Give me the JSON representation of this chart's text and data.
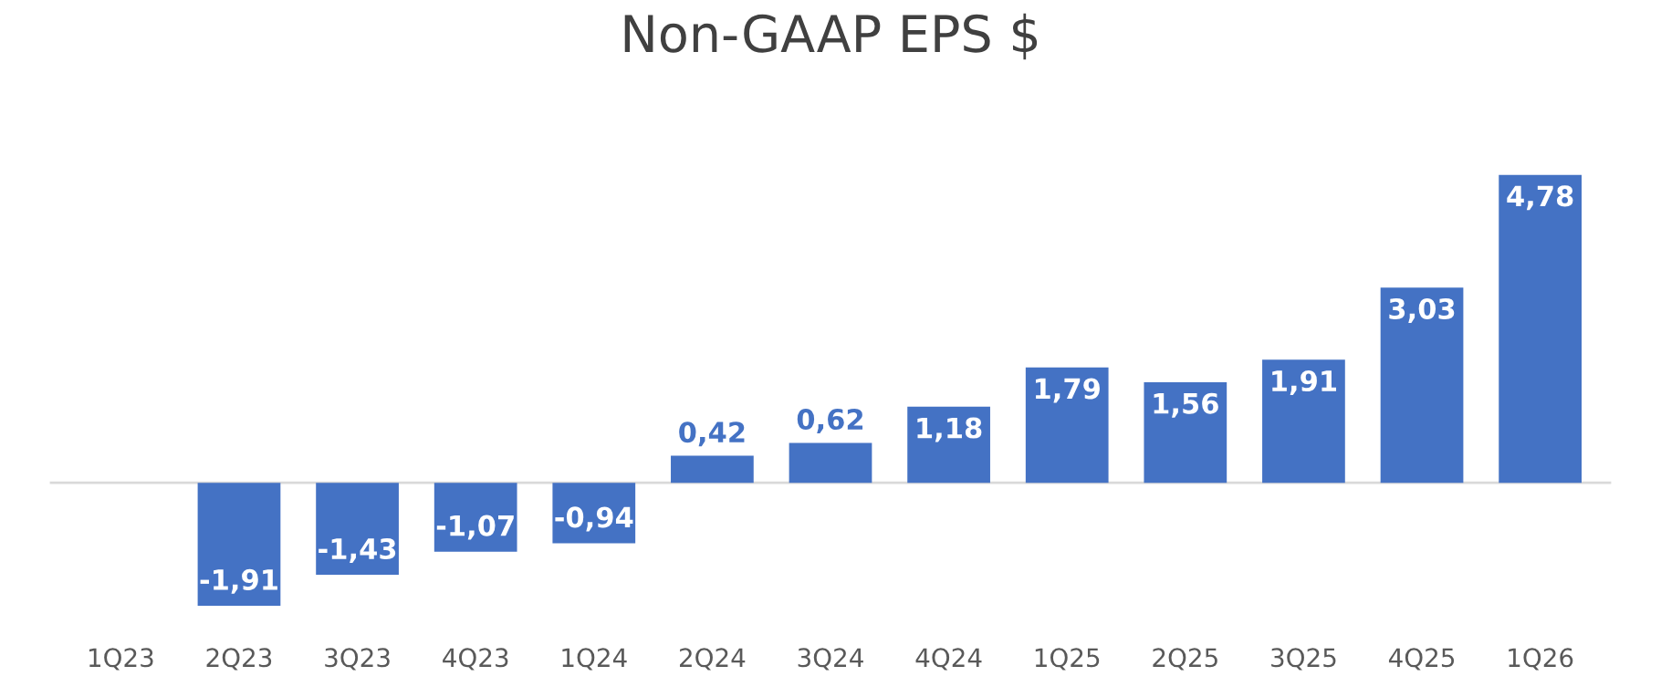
{
  "chart_data": {
    "type": "bar",
    "title": "Non-GAAP EPS $",
    "categories": [
      "1Q23",
      "2Q23",
      "3Q23",
      "4Q23",
      "1Q24",
      "2Q24",
      "3Q24",
      "4Q24",
      "1Q25",
      "2Q25",
      "3Q25",
      "4Q25",
      "1Q26"
    ],
    "values": [
      0,
      -1.91,
      -1.43,
      -1.07,
      -0.94,
      0.42,
      0.62,
      1.18,
      1.79,
      1.56,
      1.91,
      3.03,
      4.78
    ],
    "value_labels": [
      null,
      "-1,91",
      "-1,43",
      "-1,07",
      "-0,94",
      "0,42",
      "0,62",
      "1,18",
      "1,79",
      "1,56",
      "1,91",
      "3,03",
      "4,78"
    ],
    "color": "#4472c4",
    "grid": false,
    "legend": false
  }
}
